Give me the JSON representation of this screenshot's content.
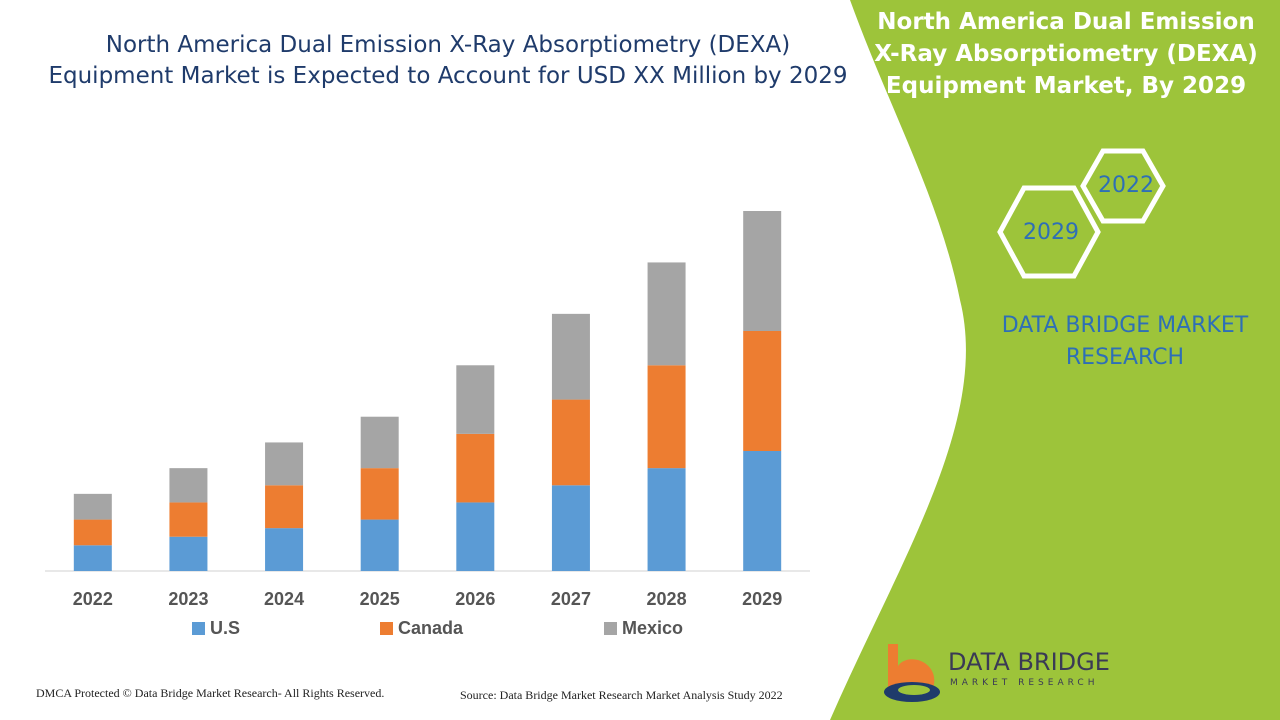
{
  "header": {
    "title": "North America Dual Emission X-Ray Absorptiometry (DEXA) Equipment Market is Expected to Account for USD XX Million by 2029"
  },
  "side_panel": {
    "title": "North America Dual Emission X-Ray Absorptiometry (DEXA) Equipment Market, By 2029",
    "hex_labels": [
      "2022",
      "2029"
    ],
    "brand_text": "DATA BRIDGE MARKET RESEARCH",
    "bg_color": "#9dc43a",
    "accent_color": "#2e6fb6"
  },
  "chart_data": {
    "type": "bar",
    "stacked": true,
    "categories": [
      "2022",
      "2023",
      "2024",
      "2025",
      "2026",
      "2027",
      "2028",
      "2029"
    ],
    "series": [
      {
        "name": "U.S",
        "color": "#5b9bd5",
        "values": [
          1.5,
          2.0,
          2.5,
          3.0,
          4.0,
          5.0,
          6.0,
          7.0
        ]
      },
      {
        "name": "Canada",
        "color": "#ed7d31",
        "values": [
          1.5,
          2.0,
          2.5,
          3.0,
          4.0,
          5.0,
          6.0,
          7.0
        ]
      },
      {
        "name": "Mexico",
        "color": "#a5a5a5",
        "values": [
          1.5,
          2.0,
          2.5,
          3.0,
          4.0,
          5.0,
          6.0,
          7.0
        ]
      }
    ],
    "ylim": [
      0,
      21
    ],
    "legend_position": "bottom",
    "grid": false
  },
  "footer": {
    "left": "DMCA Protected © Data Bridge Market Research- All Rights Reserved.",
    "right": "Source: Data Bridge Market Research Market Analysis Study 2022"
  },
  "logo": {
    "name": "DATA BRIDGE",
    "tagline": "MARKET RESEARCH"
  }
}
